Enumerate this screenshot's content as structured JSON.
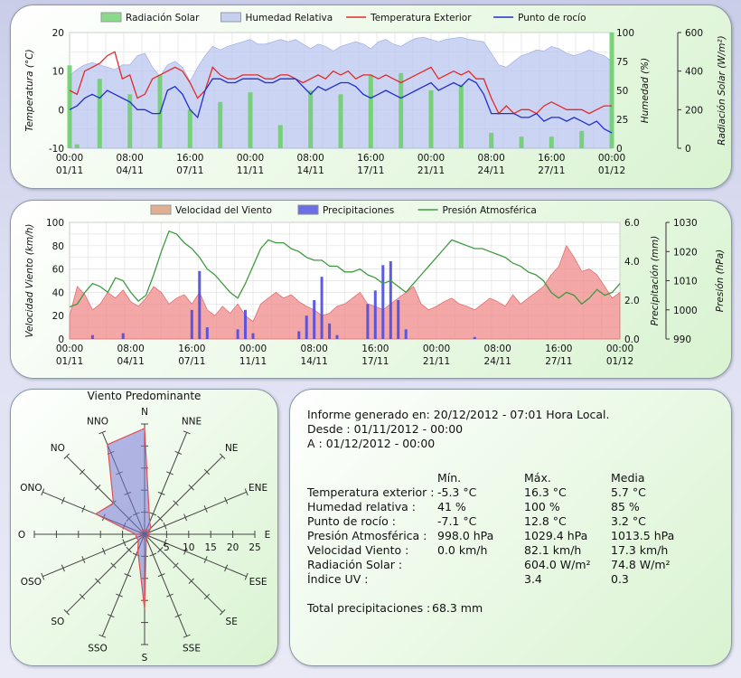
{
  "x_ticks": [
    {
      "time": "00:00",
      "date": "01/11"
    },
    {
      "time": "08:00",
      "date": "04/11"
    },
    {
      "time": "16:00",
      "date": "07/11"
    },
    {
      "time": "00:00",
      "date": "11/11"
    },
    {
      "time": "08:00",
      "date": "14/11"
    },
    {
      "time": "16:00",
      "date": "17/11"
    },
    {
      "time": "00:00",
      "date": "21/11"
    },
    {
      "time": "08:00",
      "date": "24/11"
    },
    {
      "time": "16:00",
      "date": "27/11"
    },
    {
      "time": "00:00",
      "date": "01/12"
    }
  ],
  "colors": {
    "solar": "#6fcf6f",
    "humidity": "#b9c6ee",
    "temperature": "#e22a2a",
    "dewpoint": "#1f2fd0",
    "wind": "#f08a8a",
    "rain": "#4b4be0",
    "pressure": "#3f9a3f",
    "rose_fill": "#7878d8",
    "rose_line": "#e05050"
  },
  "chart_data": [
    {
      "id": "weather",
      "type": "line",
      "x_range": [
        "01/11/2012 00:00",
        "01/12/2012 00:00"
      ],
      "grid": true,
      "legend": {
        "position": "top",
        "items": [
          "Radiación Solar",
          "Humedad Relativa",
          "Temperatura Exterior",
          "Punto de rocío"
        ]
      },
      "axes": {
        "y_left": {
          "label": "Temperatura (°C)",
          "range": [
            -10,
            20
          ],
          "ticks": [
            "20",
            "10",
            "0",
            "-10"
          ]
        },
        "y_right1": {
          "label": "Humedad (%)",
          "range": [
            0,
            100
          ],
          "ticks": [
            "100",
            "75",
            "50",
            "25",
            "0"
          ]
        },
        "y_right2": {
          "label": "Radiación Solar (W/m²)",
          "range": [
            0,
            600
          ],
          "ticks": [
            "600",
            "400",
            "200",
            "0"
          ]
        }
      },
      "series": [
        {
          "name": "Temperatura Exterior",
          "axis": "y_left",
          "values": [
            5,
            4,
            10,
            11,
            12,
            14,
            15,
            8,
            9,
            3,
            4,
            8,
            9,
            10,
            11,
            10,
            7,
            3,
            5,
            11,
            9,
            8,
            8,
            9,
            9,
            9,
            8,
            8,
            9,
            9,
            8,
            7,
            8,
            9,
            8,
            10,
            9,
            10,
            8,
            9,
            9,
            8,
            9,
            8,
            7,
            8,
            9,
            10,
            11,
            8,
            9,
            10,
            9,
            10,
            8,
            8,
            3,
            -1,
            1,
            -1,
            0,
            0,
            -1,
            1,
            2,
            1,
            0,
            0,
            0,
            -1,
            0,
            1,
            1
          ]
        },
        {
          "name": "Punto de rocío",
          "axis": "y_left",
          "values": [
            0,
            1,
            3,
            4,
            3,
            5,
            4,
            3,
            2,
            0,
            0,
            -1,
            -1,
            5,
            6,
            4,
            0,
            -2,
            5,
            8,
            8,
            7,
            7,
            8,
            8,
            8,
            7,
            7,
            8,
            8,
            8,
            6,
            4,
            6,
            5,
            6,
            7,
            7,
            6,
            4,
            3,
            4,
            5,
            4,
            3,
            4,
            5,
            6,
            7,
            5,
            6,
            7,
            6,
            8,
            7,
            4,
            -1,
            -1,
            -1,
            -1,
            -2,
            -2,
            -1,
            -3,
            -2,
            -2,
            -3,
            -2,
            -3,
            -4,
            -3,
            -5,
            -6
          ]
        },
        {
          "name": "Humedad Relativa",
          "axis": "y_right1",
          "values": [
            63,
            68,
            72,
            74,
            72,
            70,
            68,
            72,
            72,
            80,
            82,
            70,
            62,
            72,
            75,
            70,
            58,
            70,
            80,
            88,
            85,
            88,
            90,
            92,
            94,
            90,
            90,
            92,
            94,
            92,
            94,
            90,
            86,
            90,
            88,
            84,
            88,
            90,
            92,
            90,
            86,
            92,
            94,
            90,
            88,
            92,
            95,
            96,
            94,
            92,
            94,
            95,
            96,
            94,
            93,
            92,
            82,
            72,
            70,
            75,
            80,
            82,
            85,
            84,
            88,
            86,
            82,
            80,
            82,
            85,
            82,
            80,
            75
          ]
        },
        {
          "name": "Radiación Solar",
          "axis": "y_right2",
          "values": [
            430,
            20,
            0,
            0,
            360,
            0,
            0,
            0,
            280,
            0,
            0,
            0,
            380,
            0,
            0,
            0,
            200,
            0,
            0,
            0,
            240,
            0,
            0,
            0,
            290,
            0,
            0,
            0,
            120,
            0,
            0,
            0,
            300,
            0,
            0,
            0,
            280,
            0,
            0,
            0,
            380,
            0,
            0,
            0,
            390,
            0,
            0,
            0,
            300,
            0,
            0,
            0,
            330,
            0,
            0,
            0,
            80,
            0,
            0,
            0,
            60,
            0,
            0,
            0,
            60,
            0,
            0,
            0,
            90,
            0,
            0,
            0,
            600
          ]
        }
      ]
    },
    {
      "id": "wind",
      "type": "line",
      "x_range": [
        "01/11/2012 00:00",
        "01/12/2012 00:00"
      ],
      "grid": true,
      "legend": {
        "position": "top",
        "items": [
          "Velocidad del Viento",
          "Precipitaciones",
          "Presión Atmosférica"
        ]
      },
      "axes": {
        "y_left": {
          "label": "Velocidad Viento (km/h)",
          "range": [
            0,
            100
          ],
          "ticks": [
            "100",
            "80",
            "60",
            "40",
            "20",
            "0"
          ]
        },
        "y_right1": {
          "label": "Precipitación (mm)",
          "range": [
            0,
            6
          ],
          "ticks": [
            "6.0",
            "4.0",
            "2.0",
            "0.0"
          ]
        },
        "y_right2": {
          "label": "Presión (hPa)",
          "range": [
            990,
            1030
          ],
          "ticks": [
            "1030",
            "1020",
            "1010",
            "1000",
            "990"
          ]
        }
      },
      "series": [
        {
          "name": "Velocidad del Viento",
          "axis": "y_left",
          "values": [
            20,
            45,
            38,
            25,
            30,
            40,
            35,
            42,
            32,
            28,
            35,
            45,
            40,
            30,
            35,
            38,
            30,
            40,
            25,
            20,
            28,
            22,
            30,
            20,
            15,
            30,
            35,
            40,
            35,
            38,
            32,
            28,
            25,
            20,
            22,
            28,
            30,
            35,
            40,
            30,
            28,
            25,
            30,
            35,
            40,
            45,
            30,
            25,
            28,
            32,
            35,
            30,
            28,
            25,
            30,
            35,
            32,
            28,
            38,
            30,
            35,
            40,
            45,
            55,
            62,
            80,
            70,
            58,
            60,
            55,
            45,
            35,
            40
          ]
        },
        {
          "name": "Precipitaciones",
          "axis": "y_right1",
          "values": [
            0,
            0,
            0,
            0.2,
            0,
            0,
            0,
            0.3,
            0,
            0,
            0,
            0,
            0,
            0,
            0,
            0,
            1.5,
            3.5,
            0.6,
            0,
            0,
            0,
            0.5,
            1.5,
            0.3,
            0,
            0,
            0,
            0,
            0,
            0.4,
            1.2,
            2.0,
            3.2,
            0.8,
            0.2,
            0,
            0,
            0,
            1.8,
            2.5,
            3.8,
            4.0,
            2.0,
            0.5,
            0,
            0,
            0,
            0,
            0,
            0,
            0,
            0,
            0.1,
            0,
            0,
            0,
            0,
            0,
            0,
            0,
            0,
            0,
            0,
            0,
            0,
            0,
            0,
            0,
            0,
            0,
            0,
            0
          ]
        },
        {
          "name": "Presión Atmosférica",
          "axis": "y_right2",
          "values": [
            1001,
            1002,
            1006,
            1009,
            1008,
            1006,
            1011,
            1010,
            1006,
            1003,
            1005,
            1012,
            1020,
            1027,
            1026,
            1023,
            1021,
            1018,
            1014,
            1012,
            1009,
            1006,
            1004,
            1009,
            1015,
            1021,
            1024,
            1023,
            1023,
            1021,
            1020,
            1018,
            1017,
            1017,
            1015,
            1015,
            1013,
            1013,
            1014,
            1012,
            1011,
            1009,
            1010,
            1008,
            1006,
            1009,
            1012,
            1015,
            1018,
            1021,
            1024,
            1023,
            1022,
            1021,
            1021,
            1020,
            1019,
            1018,
            1016,
            1015,
            1013,
            1012,
            1010,
            1006,
            1004,
            1006,
            1005,
            1002,
            1004,
            1007,
            1005,
            1006,
            1009
          ]
        }
      ]
    },
    {
      "id": "rose",
      "type": "radar",
      "title": "Viento Predominante",
      "directions": [
        "N",
        "NNE",
        "NE",
        "ENE",
        "E",
        "ESE",
        "SE",
        "SSE",
        "S",
        "SSO",
        "SO",
        "OSO",
        "O",
        "ONO",
        "NO",
        "NNO"
      ],
      "values": [
        24,
        3,
        2,
        1,
        1,
        1,
        1,
        1,
        17,
        4,
        2,
        2,
        2,
        12,
        10,
        22
      ],
      "r_max": 25,
      "r_ticks": [
        "5",
        "10",
        "15",
        "20",
        "25"
      ]
    }
  ],
  "report": {
    "generated": "Informe generado en: 20/12/2012 - 07:01 Hora Local.",
    "from": "Desde : 01/11/2012 - 00:00",
    "to": "A : 01/12/2012 - 00:00",
    "headers": [
      "Mín.",
      "Máx.",
      "Media"
    ],
    "rows": [
      {
        "label": "Temperatura exterior :",
        "min": "-5.3 °C",
        "max": "16.3 °C",
        "avg": "5.7 °C"
      },
      {
        "label": "Humedad relativa :",
        "min": "41 %",
        "max": "100 %",
        "avg": "85 %"
      },
      {
        "label": "Punto de rocío :",
        "min": "-7.1 °C",
        "max": "12.8 °C",
        "avg": "3.2 °C"
      },
      {
        "label": "Presión Atmosférica :",
        "min": "998.0 hPa",
        "max": "1029.4 hPa",
        "avg": "1013.5 hPa"
      },
      {
        "label": "Velocidad Viento :",
        "min": "0.0 km/h",
        "max": "82.1 km/h",
        "avg": "17.3 km/h"
      },
      {
        "label": "Radiación Solar :",
        "min": "",
        "max": "604.0 W/m²",
        "avg": "74.8 W/m²"
      },
      {
        "label": "Índice UV :",
        "min": "",
        "max": "3.4",
        "avg": "0.3"
      }
    ],
    "total_label": "Total precipitaciones :",
    "total_value": "68.3 mm"
  }
}
